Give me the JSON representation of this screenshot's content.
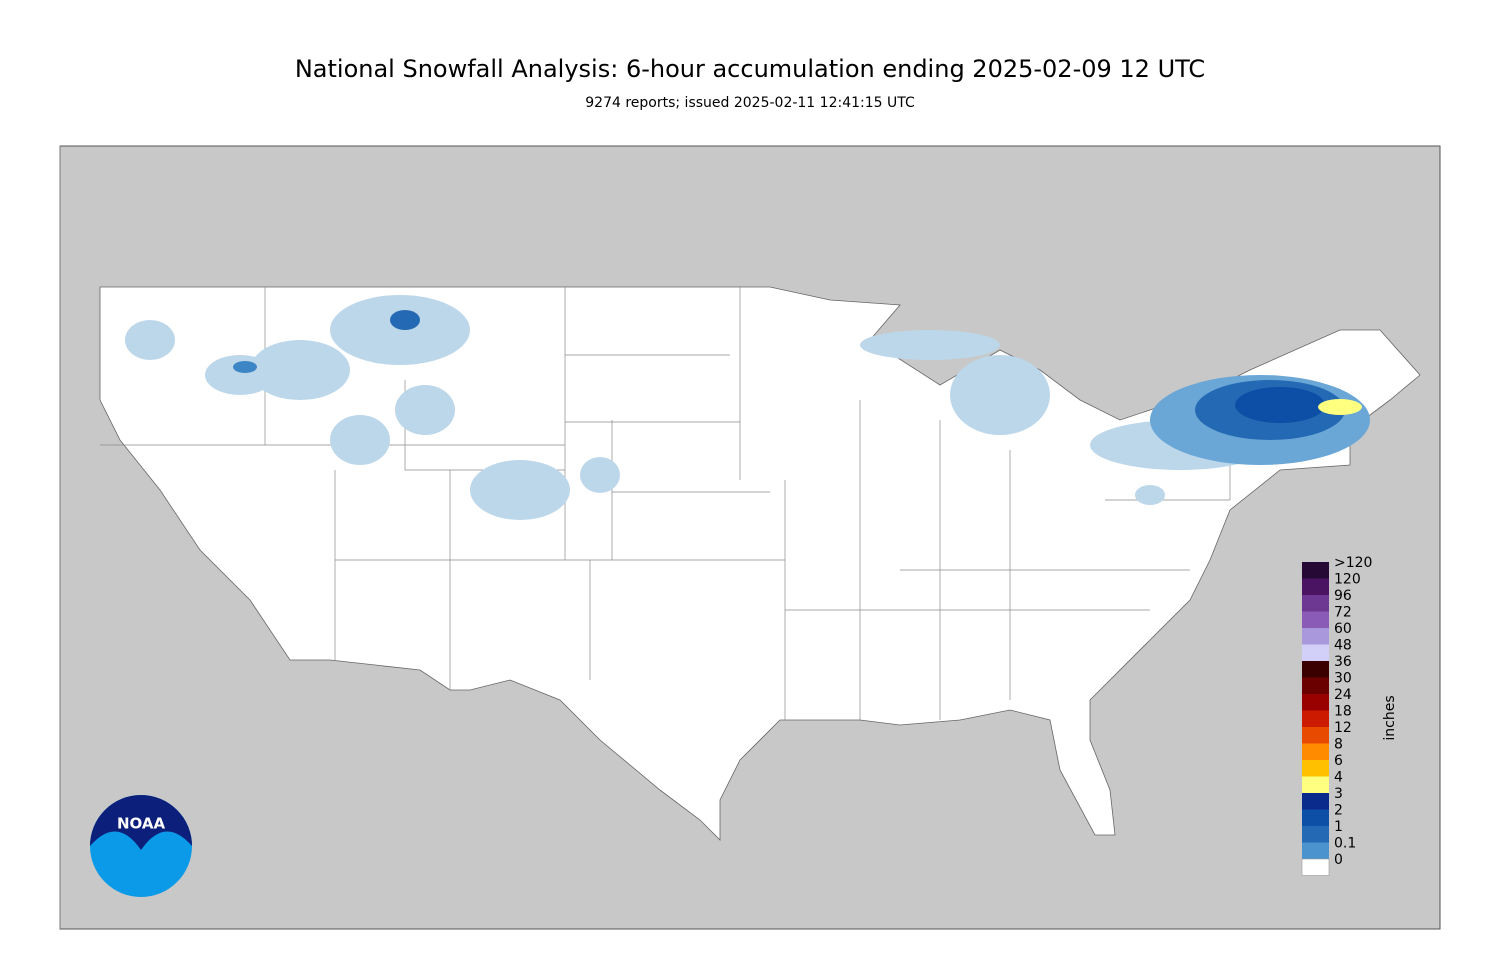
{
  "header": {
    "title": "National Snowfall Analysis: 6-hour accumulation ending 2025-02-09 12 UTC",
    "subtitle": "9274 reports; issued 2025-02-11 12:41:15 UTC"
  },
  "logo": {
    "text": "NOAA"
  },
  "legend": {
    "unit": "inches",
    "levels": [
      ">120",
      120,
      96,
      72,
      60,
      48,
      36,
      30,
      24,
      18,
      12,
      8,
      6,
      4,
      3,
      2,
      1,
      0.1,
      0
    ],
    "colors": [
      "#260935",
      "#4b1463",
      "#6c3892",
      "#8a5cb8",
      "#a998dc",
      "#d2cff8",
      "#3a0000",
      "#6b0000",
      "#990000",
      "#cc1a00",
      "#e84a00",
      "#ff8c00",
      "#ffc000",
      "#ffff80",
      "#0a2a8c",
      "#0d4ea6",
      "#2469b3",
      "#4a93cf",
      "#ffffff"
    ]
  }
}
